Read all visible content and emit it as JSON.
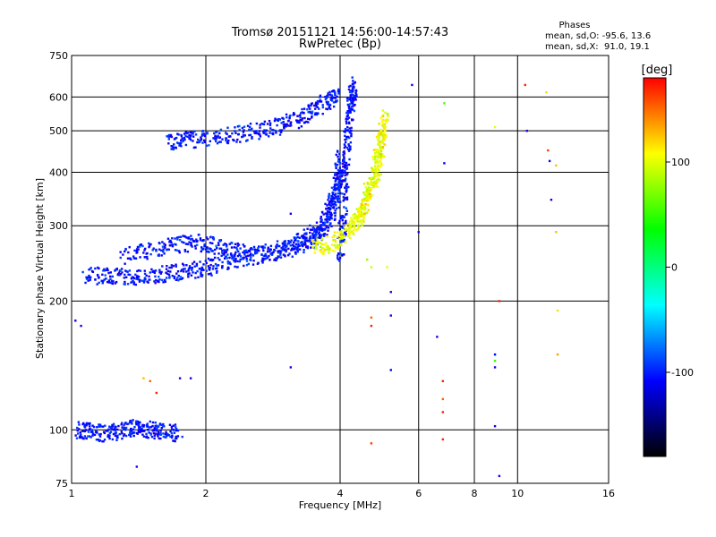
{
  "chart_data": {
    "type": "scatter",
    "title": "Tromsø 20151121 14:56:00-14:57:43",
    "subtitle": "RwPretec (Bp)",
    "xlabel": "Frequency [MHz]",
    "ylabel": "Stationary phase Virtual Height [km]",
    "x_scale": "log2",
    "y_scale": "log",
    "xlim": [
      1,
      16
    ],
    "ylim": [
      75,
      750
    ],
    "x_ticks": [
      1,
      2,
      4,
      6,
      8,
      10,
      16
    ],
    "y_ticks": [
      75,
      100,
      200,
      300,
      400,
      500,
      600,
      750
    ],
    "grid": true,
    "stats": {
      "heading": "Phases",
      "o_line": "mean, sd,O: -95.6, 13.6",
      "x_line": "mean, sd,X:  91.0, 19.1"
    },
    "colorbar": {
      "label": "[deg]",
      "range": [
        -180,
        180
      ],
      "ticks": [
        100,
        0,
        -100
      ],
      "colors": [
        "#ff0000",
        "#ffff00",
        "#00ff00",
        "#00ffff",
        "#0000ff",
        "#000000"
      ]
    },
    "series": [
      {
        "name": "O",
        "mean_phase": -95.6,
        "sd_phase": 13.6,
        "traces": [
          {
            "x": [
              1.08,
              1.2,
              1.35,
              1.5,
              1.7,
              1.9,
              2.1,
              2.4,
              2.8,
              3.2,
              3.5,
              3.75,
              3.9,
              4.0
            ],
            "y": [
              230,
              228,
              227,
              230,
              233,
              236,
              242,
              250,
              258,
              268,
              280,
              300,
              340,
              400
            ]
          },
          {
            "x": [
              1.3,
              1.5,
              1.7,
              1.9,
              2.1,
              2.3,
              2.6,
              3.0,
              3.3,
              3.6,
              3.8,
              3.95,
              4.02
            ],
            "y": [
              255,
              262,
              270,
              275,
              270,
              262,
              258,
              265,
              278,
              295,
              330,
              380,
              440
            ]
          },
          {
            "x": [
              4.0,
              4.05,
              4.1,
              4.15,
              4.2,
              4.25,
              4.3
            ],
            "y": [
              250,
              300,
              380,
              460,
              540,
              600,
              640
            ]
          },
          {
            "x": [
              1.65,
              1.8,
              2.0,
              2.3,
              2.6,
              2.9,
              3.2,
              3.5,
              3.8,
              3.95
            ],
            "y": [
              470,
              475,
              480,
              490,
              500,
              510,
              530,
              560,
              590,
              610
            ]
          },
          {
            "x": [
              1.03,
              1.1,
              1.2,
              1.3,
              1.4,
              1.5,
              1.6,
              1.75
            ],
            "y": [
              100,
              99,
              98,
              100,
              101,
              100,
              99,
              98
            ]
          }
        ]
      },
      {
        "name": "X",
        "mean_phase": 91.0,
        "sd_phase": 19.1,
        "traces": [
          {
            "x": [
              3.5,
              3.8,
              4.1,
              4.4,
              4.6,
              4.8,
              4.95,
              5.05
            ],
            "y": [
              265,
              272,
              285,
              310,
              340,
              390,
              450,
              560
            ]
          },
          {
            "x": [
              4.3,
              4.5,
              4.7,
              4.9,
              5.0
            ],
            "y": [
              300,
              330,
              380,
              450,
              520
            ]
          }
        ]
      }
    ],
    "scattered_points": [
      {
        "x": 4.7,
        "y": 183,
        "phase": 150
      },
      {
        "x": 4.7,
        "y": 175,
        "phase": 170
      },
      {
        "x": 5.2,
        "y": 210,
        "phase": -110
      },
      {
        "x": 5.2,
        "y": 185,
        "phase": -115
      },
      {
        "x": 5.2,
        "y": 138,
        "phase": -100
      },
      {
        "x": 4.6,
        "y": 250,
        "phase": 60
      },
      {
        "x": 4.7,
        "y": 240,
        "phase": 80
      },
      {
        "x": 5.1,
        "y": 240,
        "phase": 90
      },
      {
        "x": 4.7,
        "y": 93,
        "phase": 160
      },
      {
        "x": 6.6,
        "y": 165,
        "phase": -110
      },
      {
        "x": 6.8,
        "y": 130,
        "phase": 170
      },
      {
        "x": 6.8,
        "y": 118,
        "phase": 150
      },
      {
        "x": 6.8,
        "y": 110,
        "phase": 170
      },
      {
        "x": 6.8,
        "y": 95,
        "phase": 170
      },
      {
        "x": 6.85,
        "y": 580,
        "phase": 30
      },
      {
        "x": 6.85,
        "y": 420,
        "phase": -100
      },
      {
        "x": 8.9,
        "y": 510,
        "phase": 90
      },
      {
        "x": 8.9,
        "y": 150,
        "phase": -100
      },
      {
        "x": 8.9,
        "y": 145,
        "phase": 20
      },
      {
        "x": 8.9,
        "y": 140,
        "phase": -110
      },
      {
        "x": 8.9,
        "y": 102,
        "phase": -110
      },
      {
        "x": 9.1,
        "y": 200,
        "phase": 170
      },
      {
        "x": 9.1,
        "y": 78,
        "phase": -110
      },
      {
        "x": 10.4,
        "y": 640,
        "phase": 170
      },
      {
        "x": 10.5,
        "y": 500,
        "phase": -110
      },
      {
        "x": 11.6,
        "y": 615,
        "phase": 110
      },
      {
        "x": 11.7,
        "y": 450,
        "phase": 160
      },
      {
        "x": 11.8,
        "y": 425,
        "phase": -110
      },
      {
        "x": 11.9,
        "y": 345,
        "phase": -110
      },
      {
        "x": 12.2,
        "y": 290,
        "phase": 120
      },
      {
        "x": 12.3,
        "y": 190,
        "phase": 110
      },
      {
        "x": 12.3,
        "y": 150,
        "phase": 130
      },
      {
        "x": 12.2,
        "y": 415,
        "phase": 120
      },
      {
        "x": 3.1,
        "y": 140,
        "phase": -110
      },
      {
        "x": 3.1,
        "y": 320,
        "phase": -110
      },
      {
        "x": 1.02,
        "y": 180,
        "phase": -110
      },
      {
        "x": 1.05,
        "y": 175,
        "phase": -110
      },
      {
        "x": 1.5,
        "y": 130,
        "phase": 150
      },
      {
        "x": 1.55,
        "y": 122,
        "phase": 170
      },
      {
        "x": 1.75,
        "y": 132,
        "phase": -110
      },
      {
        "x": 1.85,
        "y": 132,
        "phase": -110
      },
      {
        "x": 1.45,
        "y": 132,
        "phase": 120
      },
      {
        "x": 1.4,
        "y": 82,
        "phase": -110
      },
      {
        "x": 5.8,
        "y": 640,
        "phase": -110
      },
      {
        "x": 6.0,
        "y": 290,
        "phase": -110
      }
    ]
  }
}
